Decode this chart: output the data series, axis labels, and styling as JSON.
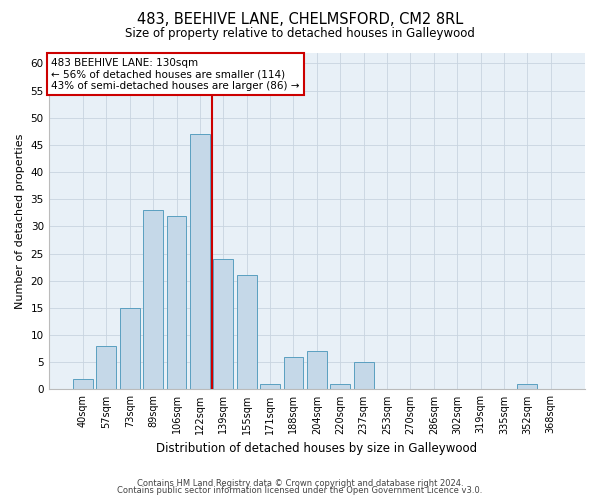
{
  "title1": "483, BEEHIVE LANE, CHELMSFORD, CM2 8RL",
  "title2": "Size of property relative to detached houses in Galleywood",
  "xlabel": "Distribution of detached houses by size in Galleywood",
  "ylabel": "Number of detached properties",
  "categories": [
    "40sqm",
    "57sqm",
    "73sqm",
    "89sqm",
    "106sqm",
    "122sqm",
    "139sqm",
    "155sqm",
    "171sqm",
    "188sqm",
    "204sqm",
    "220sqm",
    "237sqm",
    "253sqm",
    "270sqm",
    "286sqm",
    "302sqm",
    "319sqm",
    "335sqm",
    "352sqm",
    "368sqm"
  ],
  "values": [
    2,
    8,
    15,
    33,
    32,
    47,
    24,
    21,
    1,
    6,
    7,
    1,
    5,
    0,
    0,
    0,
    0,
    0,
    0,
    1,
    0
  ],
  "bar_color": "#c5d8e8",
  "bar_edge_color": "#5a9fc0",
  "highlight_line_index": 6,
  "annotation_title": "483 BEEHIVE LANE: 130sqm",
  "annotation_line1": "← 56% of detached houses are smaller (114)",
  "annotation_line2": "43% of semi-detached houses are larger (86) →",
  "annotation_box_color": "#ffffff",
  "annotation_box_edge": "#cc0000",
  "ylim": [
    0,
    62
  ],
  "yticks": [
    0,
    5,
    10,
    15,
    20,
    25,
    30,
    35,
    40,
    45,
    50,
    55,
    60
  ],
  "grid_color": "#c8d4e0",
  "bg_color": "#e8f0f7",
  "footer1": "Contains HM Land Registry data © Crown copyright and database right 2024.",
  "footer2": "Contains public sector information licensed under the Open Government Licence v3.0."
}
